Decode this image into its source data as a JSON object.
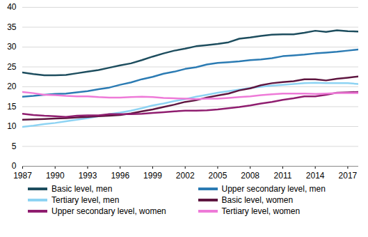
{
  "chart_data": {
    "type": "line",
    "x": [
      1987,
      1988,
      1989,
      1990,
      1991,
      1992,
      1993,
      1994,
      1995,
      1996,
      1997,
      1998,
      1999,
      2000,
      2001,
      2002,
      2003,
      2004,
      2005,
      2006,
      2007,
      2008,
      2009,
      2010,
      2011,
      2012,
      2013,
      2014,
      2015,
      2016,
      2017,
      2018
    ],
    "xlim": [
      1987,
      2018
    ],
    "xticks": [
      1987,
      1990,
      1993,
      1996,
      1999,
      2002,
      2005,
      2008,
      2011,
      2014,
      2017
    ],
    "ylim": [
      0,
      40
    ],
    "yticks": [
      0,
      5,
      10,
      15,
      20,
      25,
      30,
      35,
      40
    ],
    "grid": true,
    "legend": "bottom",
    "series": [
      {
        "name": "Basic level, men",
        "color": "#1d4d5e",
        "values": [
          23.6,
          23.2,
          22.9,
          22.9,
          23.0,
          23.4,
          23.8,
          24.2,
          24.8,
          25.4,
          25.9,
          26.7,
          27.6,
          28.4,
          29.1,
          29.6,
          30.2,
          30.5,
          30.8,
          31.2,
          32.1,
          32.4,
          32.8,
          33.1,
          33.2,
          33.2,
          33.6,
          34.1,
          33.8,
          34.2,
          34.0,
          33.9
        ]
      },
      {
        "name": "Upper secondary level, men",
        "color": "#2b7bb3",
        "values": [
          17.5,
          17.7,
          18.0,
          18.2,
          18.3,
          18.6,
          18.9,
          19.4,
          19.8,
          20.5,
          21.1,
          21.9,
          22.5,
          23.3,
          23.8,
          24.5,
          24.9,
          25.6,
          26.0,
          26.2,
          26.4,
          26.7,
          26.9,
          27.2,
          27.7,
          27.9,
          28.1,
          28.4,
          28.6,
          28.8,
          29.1,
          29.4
        ]
      },
      {
        "name": "Tertiary level, men",
        "color": "#8dd3f3",
        "values": [
          9.9,
          10.2,
          10.6,
          10.9,
          11.3,
          11.7,
          12.1,
          12.6,
          13.1,
          13.5,
          14.0,
          14.6,
          15.3,
          15.8,
          16.4,
          16.9,
          17.5,
          18.0,
          18.5,
          18.9,
          19.3,
          19.7,
          20.0,
          20.3,
          20.5,
          20.7,
          20.9,
          21.0,
          20.9,
          20.9,
          20.9,
          20.7
        ]
      },
      {
        "name": "Basic level, women",
        "color": "#5e1640",
        "values": [
          11.7,
          11.8,
          11.9,
          12.0,
          12.1,
          12.3,
          12.4,
          12.6,
          12.7,
          12.9,
          13.3,
          13.8,
          14.3,
          14.9,
          15.5,
          16.2,
          16.6,
          17.3,
          17.8,
          18.3,
          19.1,
          19.6,
          20.4,
          20.9,
          21.2,
          21.4,
          21.9,
          21.9,
          21.6,
          22.0,
          22.3,
          22.6
        ]
      },
      {
        "name": "Upper secondary level, women",
        "color": "#8f1d6f",
        "values": [
          13.2,
          12.9,
          12.7,
          12.6,
          12.4,
          12.7,
          12.8,
          12.8,
          13.1,
          13.1,
          13.1,
          13.2,
          13.4,
          13.6,
          13.8,
          14.0,
          14.0,
          14.1,
          14.3,
          14.6,
          14.9,
          15.3,
          15.8,
          16.2,
          16.7,
          17.1,
          17.6,
          17.6,
          18.0,
          18.5,
          18.6,
          18.7
        ]
      },
      {
        "name": "Tertiary level, women",
        "color": "#ee7ad8",
        "values": [
          18.7,
          18.4,
          18.0,
          17.9,
          17.7,
          17.6,
          17.6,
          17.4,
          17.3,
          17.3,
          17.4,
          17.5,
          17.4,
          17.2,
          17.1,
          17.0,
          16.9,
          17.0,
          17.0,
          17.2,
          17.4,
          17.6,
          17.9,
          18.1,
          18.3,
          18.3,
          18.3,
          18.2,
          18.3,
          18.4,
          18.4,
          18.4
        ]
      }
    ]
  }
}
